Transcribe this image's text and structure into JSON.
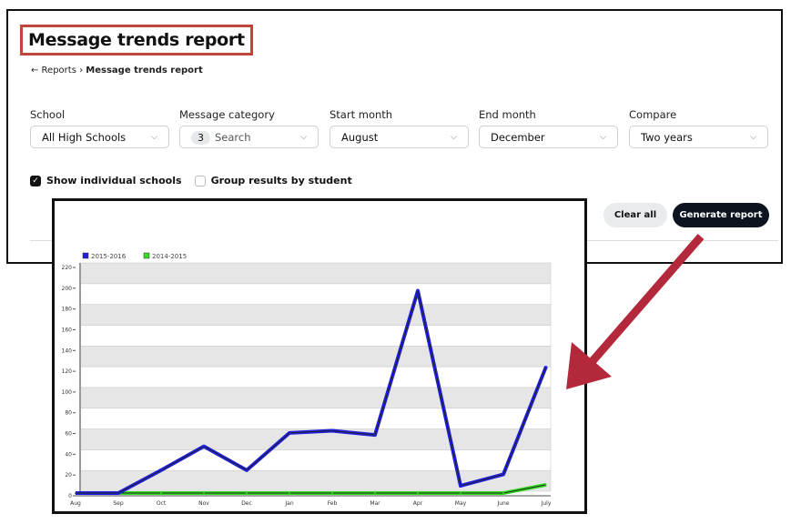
{
  "header": {
    "title": "Message trends report"
  },
  "breadcrumb": {
    "back": "← Reports",
    "separator": "›",
    "current": "Message trends report"
  },
  "filters": [
    {
      "label": "School",
      "value": "All High Schools"
    },
    {
      "label": "Message category",
      "count": "3",
      "placeholder": "Search"
    },
    {
      "label": "Start month",
      "value": "August"
    },
    {
      "label": "End month",
      "value": "December"
    },
    {
      "label": "Compare",
      "value": "Two years"
    }
  ],
  "options": {
    "show_individual_schools": {
      "label": "Show individual schools",
      "checked": true
    },
    "group_by_student": {
      "label": "Group results by student",
      "checked": false
    }
  },
  "buttons": {
    "clear": "Clear all",
    "generate": "Generate report"
  },
  "annotation": {
    "highlight_color": "#c0453d",
    "arrow_color": "#b3283a"
  },
  "chart_data": {
    "type": "line",
    "categories": [
      "Aug",
      "Sep",
      "Oct",
      "Nov",
      "Dec",
      "Jan",
      "Feb",
      "Mar",
      "Apr",
      "May",
      "June",
      "July"
    ],
    "series": [
      {
        "name": "2015-2016",
        "color": "#2020e0",
        "values": [
          0,
          0,
          22,
          45,
          22,
          58,
          60,
          56,
          195,
          7,
          18,
          122
        ]
      },
      {
        "name": "2014-2015",
        "color": "#33dd22",
        "values": [
          0,
          0,
          0,
          0,
          0,
          0,
          0,
          0,
          0,
          0,
          0,
          8
        ]
      }
    ],
    "yticks": [
      0,
      20,
      40,
      60,
      80,
      100,
      120,
      140,
      160,
      180,
      200,
      220
    ],
    "ylim": [
      0,
      220
    ],
    "grid": true,
    "legend": "top-left"
  }
}
